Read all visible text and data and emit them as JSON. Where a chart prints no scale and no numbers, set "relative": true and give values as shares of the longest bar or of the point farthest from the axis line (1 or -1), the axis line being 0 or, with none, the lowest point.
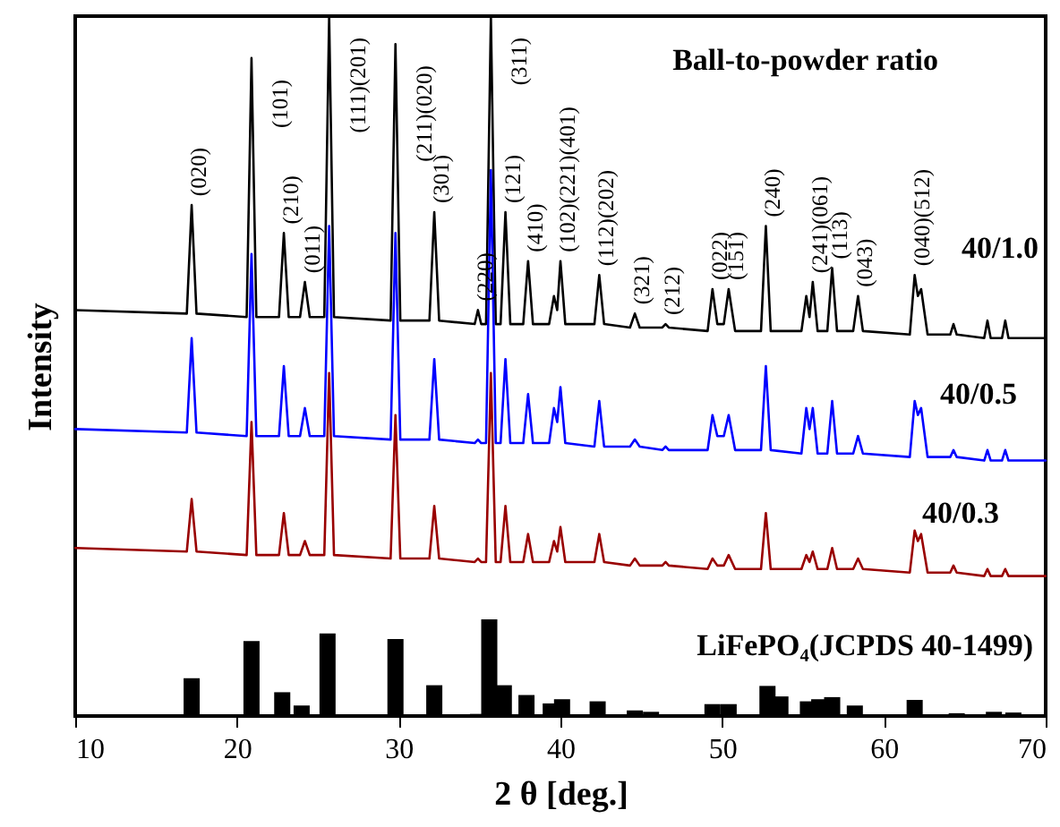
{
  "chart_data": {
    "type": "line",
    "relative": true,
    "xlabel": "2 θ [deg.]",
    "ylabel": "Intensity",
    "legend_title": "Ball-to-powder ratio",
    "xlim": [
      10,
      70
    ],
    "xticks": [
      10,
      20,
      30,
      40,
      50,
      60,
      70
    ],
    "grid": false,
    "x": [
      10,
      16.9,
      17.2,
      17.5,
      20.6,
      20.9,
      21.2,
      22.6,
      22.9,
      23.2,
      23.9,
      24.2,
      24.5,
      25.4,
      25.7,
      26.0,
      29.5,
      29.8,
      30.1,
      31.9,
      32.2,
      32.5,
      34.7,
      34.9,
      35.1,
      35.4,
      35.7,
      36.0,
      36.3,
      36.6,
      36.9,
      37.7,
      38.0,
      38.3,
      39.3,
      39.6,
      39.8,
      40.0,
      40.3,
      42.1,
      42.4,
      42.7,
      44.3,
      44.6,
      44.9,
      46.3,
      46.5,
      46.7,
      49.1,
      49.4,
      49.7,
      50.1,
      50.4,
      50.8,
      52.4,
      52.7,
      53.0,
      54.9,
      55.2,
      55.4,
      55.6,
      55.9,
      56.5,
      56.8,
      57.1,
      58.1,
      58.4,
      58.7,
      61.6,
      61.9,
      62.1,
      62.3,
      62.7,
      64.1,
      64.3,
      64.5,
      66.2,
      66.4,
      66.6,
      67.3,
      67.5,
      67.7,
      70
    ],
    "series": [
      {
        "name": "40/1.0",
        "color": "#000000",
        "values": [
          0.58,
          0.575,
          0.73,
          0.575,
          0.57,
          0.94,
          0.57,
          0.57,
          0.69,
          0.57,
          0.57,
          0.62,
          0.57,
          0.57,
          1.0,
          0.57,
          0.565,
          0.96,
          0.565,
          0.565,
          0.72,
          0.565,
          0.56,
          0.58,
          0.56,
          0.56,
          1.0,
          0.56,
          0.56,
          0.72,
          0.56,
          0.56,
          0.65,
          0.56,
          0.56,
          0.6,
          0.58,
          0.65,
          0.56,
          0.56,
          0.63,
          0.56,
          0.555,
          0.575,
          0.555,
          0.555,
          0.56,
          0.555,
          0.55,
          0.61,
          0.56,
          0.56,
          0.61,
          0.55,
          0.55,
          0.7,
          0.55,
          0.55,
          0.6,
          0.57,
          0.62,
          0.55,
          0.55,
          0.64,
          0.55,
          0.55,
          0.6,
          0.55,
          0.545,
          0.63,
          0.6,
          0.61,
          0.545,
          0.545,
          0.56,
          0.545,
          0.54,
          0.565,
          0.54,
          0.54,
          0.565,
          0.54,
          0.54
        ]
      },
      {
        "name": "40/0.5",
        "color": "#0000ff",
        "values": [
          0.41,
          0.405,
          0.54,
          0.405,
          0.4,
          0.66,
          0.4,
          0.4,
          0.5,
          0.4,
          0.4,
          0.44,
          0.4,
          0.4,
          0.7,
          0.4,
          0.395,
          0.69,
          0.395,
          0.395,
          0.51,
          0.395,
          0.39,
          0.395,
          0.39,
          0.39,
          0.78,
          0.39,
          0.39,
          0.51,
          0.39,
          0.39,
          0.46,
          0.39,
          0.39,
          0.44,
          0.42,
          0.47,
          0.39,
          0.385,
          0.45,
          0.385,
          0.385,
          0.395,
          0.385,
          0.38,
          0.385,
          0.38,
          0.38,
          0.43,
          0.4,
          0.4,
          0.43,
          0.38,
          0.38,
          0.5,
          0.38,
          0.375,
          0.44,
          0.41,
          0.44,
          0.375,
          0.375,
          0.45,
          0.375,
          0.375,
          0.4,
          0.375,
          0.37,
          0.45,
          0.43,
          0.44,
          0.37,
          0.37,
          0.38,
          0.37,
          0.365,
          0.38,
          0.365,
          0.365,
          0.38,
          0.365,
          0.365
        ]
      },
      {
        "name": "40/0.3",
        "color": "#990000",
        "values": [
          0.24,
          0.235,
          0.31,
          0.235,
          0.23,
          0.42,
          0.23,
          0.23,
          0.29,
          0.23,
          0.23,
          0.25,
          0.23,
          0.23,
          0.49,
          0.23,
          0.225,
          0.43,
          0.225,
          0.225,
          0.3,
          0.225,
          0.22,
          0.225,
          0.22,
          0.22,
          0.49,
          0.22,
          0.22,
          0.3,
          0.22,
          0.22,
          0.26,
          0.22,
          0.22,
          0.25,
          0.235,
          0.27,
          0.22,
          0.22,
          0.26,
          0.22,
          0.215,
          0.225,
          0.215,
          0.215,
          0.22,
          0.215,
          0.21,
          0.225,
          0.215,
          0.215,
          0.23,
          0.21,
          0.21,
          0.29,
          0.21,
          0.21,
          0.23,
          0.22,
          0.235,
          0.21,
          0.21,
          0.24,
          0.21,
          0.21,
          0.225,
          0.21,
          0.205,
          0.265,
          0.25,
          0.26,
          0.205,
          0.205,
          0.215,
          0.205,
          0.2,
          0.21,
          0.2,
          0.2,
          0.21,
          0.2,
          0.2
        ]
      },
      {
        "name": "LiFePO₄(JCPDS 40-1499)",
        "type": "bar",
        "color": "#000000",
        "x": [
          17.2,
          20.9,
          22.8,
          24.0,
          25.6,
          29.8,
          32.2,
          34.9,
          35.6,
          36.5,
          37.9,
          39.4,
          40.1,
          42.3,
          44.6,
          45.6,
          49.4,
          50.4,
          52.8,
          53.6,
          55.3,
          56.0,
          56.8,
          58.2,
          61.9,
          64.5,
          66.8,
          68.0
        ],
        "values": [
          0.054,
          0.107,
          0.034,
          0.015,
          0.118,
          0.11,
          0.044,
          0.003,
          0.138,
          0.044,
          0.03,
          0.018,
          0.024,
          0.021,
          0.008,
          0.006,
          0.017,
          0.017,
          0.043,
          0.028,
          0.021,
          0.024,
          0.027,
          0.015,
          0.023,
          0.004,
          0.006,
          0.005
        ]
      }
    ],
    "annotations": [
      {
        "text": "(020)",
        "x": 17.2,
        "y": 0.73
      },
      {
        "text": "(101)",
        "x": 20.9,
        "y": 0.94
      },
      {
        "text": "(210)",
        "x": 22.9,
        "y": 0.69
      },
      {
        "text": "(011)",
        "x": 24.2,
        "y": 0.62
      },
      {
        "text": "(111)(201)",
        "x": 25.7,
        "y": 1.0
      },
      {
        "text": "(211)(020)",
        "x": 29.8,
        "y": 0.96
      },
      {
        "text": "(301)",
        "x": 32.2,
        "y": 0.72
      },
      {
        "text": "(220)",
        "x": 34.9,
        "y": 0.58
      },
      {
        "text": "(311)",
        "x": 35.7,
        "y": 1.0
      },
      {
        "text": "(121)",
        "x": 36.6,
        "y": 0.72
      },
      {
        "text": "(410)",
        "x": 38.0,
        "y": 0.65
      },
      {
        "text": "(102)(221)(401)",
        "x": 40.0,
        "y": 0.65
      },
      {
        "text": "(112)(202)",
        "x": 42.4,
        "y": 0.63
      },
      {
        "text": "(321)",
        "x": 44.6,
        "y": 0.575
      },
      {
        "text": "(212)",
        "x": 46.5,
        "y": 0.56
      },
      {
        "text": "(022)",
        "x": 49.4,
        "y": 0.61
      },
      {
        "text": "(151)",
        "x": 50.4,
        "y": 0.61
      },
      {
        "text": "(240)",
        "x": 52.7,
        "y": 0.7
      },
      {
        "text": "(241)(061)",
        "x": 55.6,
        "y": 0.62
      },
      {
        "text": "(113)",
        "x": 56.8,
        "y": 0.64
      },
      {
        "text": "(043)",
        "x": 58.4,
        "y": 0.6
      },
      {
        "text": "(040)(512)",
        "x": 61.9,
        "y": 0.63
      }
    ]
  }
}
